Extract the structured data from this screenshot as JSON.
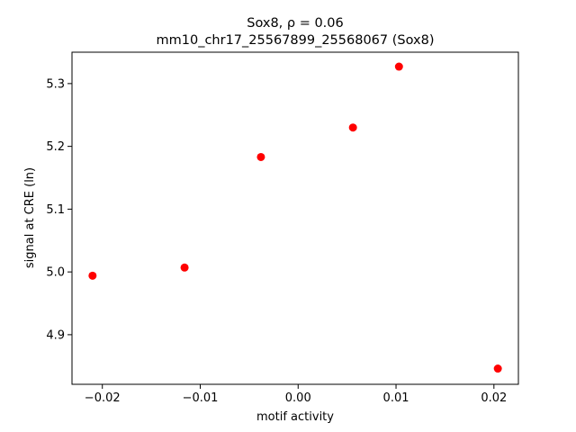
{
  "chart_data": {
    "type": "scatter",
    "title": "Sox8, ρ = 0.06",
    "subtitle": "mm10_chr17_25567899_25568067 (Sox8)",
    "xlabel": "motif activity",
    "ylabel": "signal at CRE (ln)",
    "x": [
      -0.021,
      -0.0116,
      -0.0038,
      0.0056,
      0.0103,
      0.0204
    ],
    "values": [
      4.994,
      5.007,
      5.183,
      5.23,
      5.327,
      4.846
    ],
    "color": "#ff0000",
    "xlim": [
      -0.0231,
      0.0225
    ],
    "ylim": [
      4.821,
      5.35
    ],
    "xticks": [
      {
        "value": -0.02,
        "label": "−0.02"
      },
      {
        "value": -0.01,
        "label": "−0.01"
      },
      {
        "value": 0,
        "label": "0.00"
      },
      0.01,
      0.02
    ],
    "yticks": [
      4.9,
      {
        "value": 5.0,
        "label": "5.0"
      },
      5.1,
      5.2,
      5.3
    ],
    "grid": false
  }
}
